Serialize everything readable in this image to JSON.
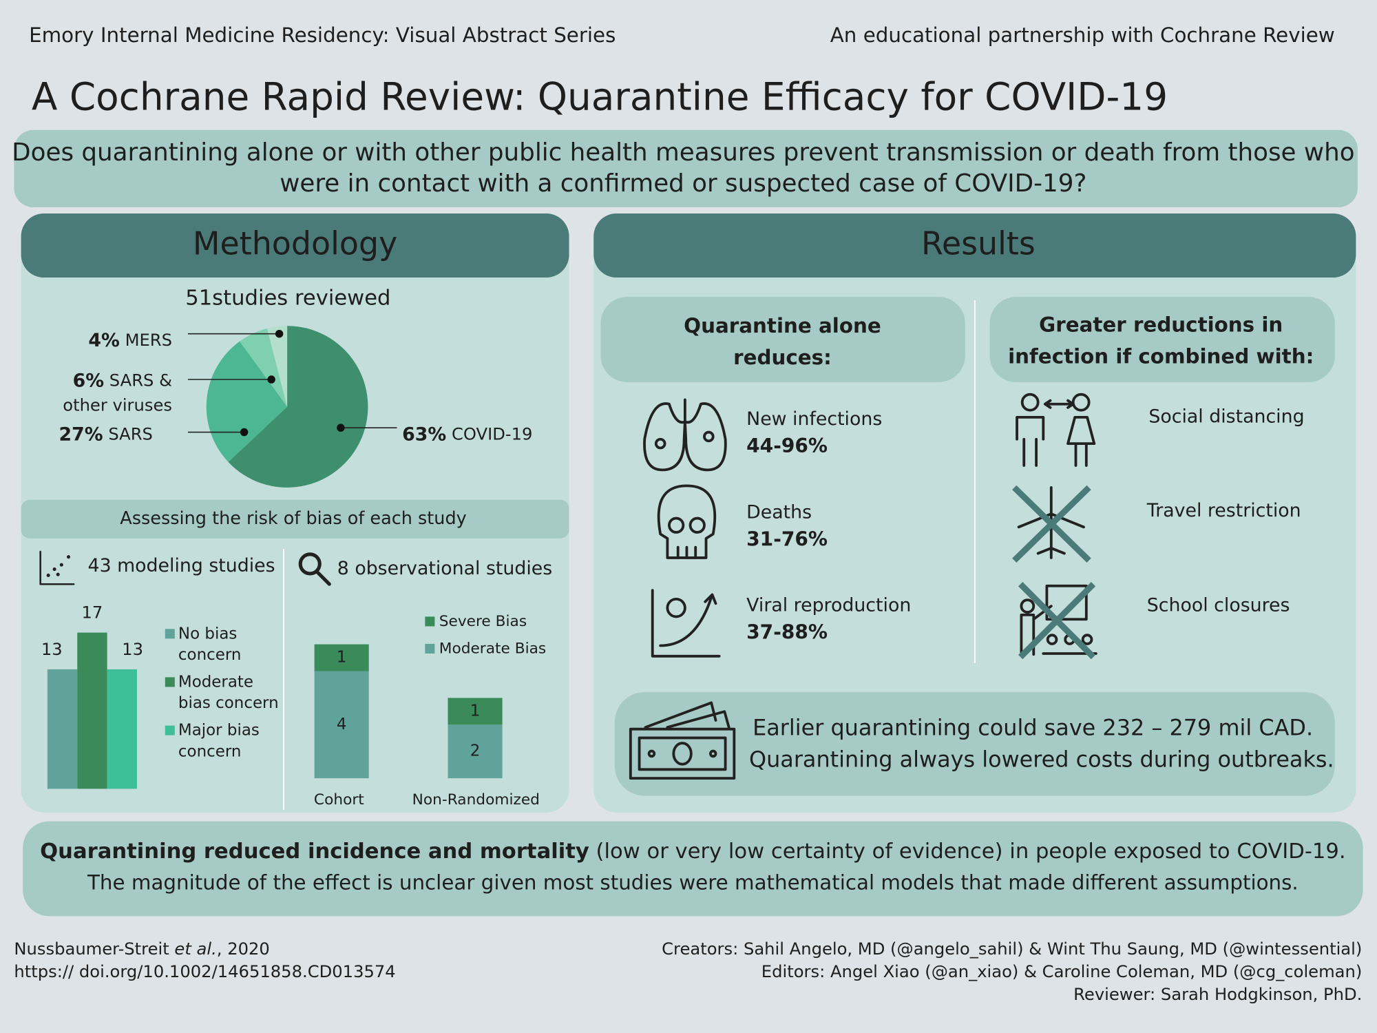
{
  "header": {
    "left": "Emory Internal Medicine Residency: Visual Abstract Series",
    "right": "An educational partnership with Cochrane Review"
  },
  "title": "A Cochrane Rapid Review: Quarantine Efficacy for COVID-19",
  "question": {
    "lines": [
      "Does quarantining alone or with other public health measures prevent transmission or death from those who",
      "were in contact with a confirmed or suspected case of COVID-19?"
    ]
  },
  "methodology": {
    "heading": "Methodology",
    "studies_count": 51,
    "studies_label": "studies reviewed",
    "pie": {
      "slices": [
        {
          "name_lines": [
            "COVID-19"
          ],
          "value": 63,
          "value_label": "63%",
          "color": "#3d8f6d"
        },
        {
          "name_lines": [
            "SARS"
          ],
          "value": 27,
          "value_label": "27%",
          "color": "#4cb792"
        },
        {
          "name_lines": [
            "SARS &",
            "other viruses"
          ],
          "value": 6,
          "value_label": "6%",
          "color": "#7fcfb1"
        },
        {
          "name_lines": [
            "MERS"
          ],
          "value": 4,
          "value_label": "4%",
          "color": "#b4dfcd"
        }
      ]
    },
    "bias_heading": "Assessing the risk of bias of each study",
    "modeling": {
      "label": "43 modeling studies",
      "series": [
        {
          "name_lines": [
            "No bias",
            "concern"
          ],
          "value": 13,
          "color": "#5fa39b"
        },
        {
          "name_lines": [
            "Moderate",
            "bias concern"
          ],
          "value": 17,
          "color": "#3a8a5a"
        },
        {
          "name_lines": [
            "Major bias",
            "concern"
          ],
          "value": 13,
          "color": "#3fbf98"
        }
      ]
    },
    "observational": {
      "label": "8 observational studies",
      "categories": [
        "Cohort",
        "Non-Randomized"
      ],
      "series": [
        {
          "name": "Moderate Bias",
          "values": [
            4,
            2
          ],
          "color": "#5fa39b"
        },
        {
          "name": "Severe Bias",
          "values": [
            1,
            1
          ],
          "color": "#3a8a5a"
        }
      ]
    }
  },
  "results": {
    "heading": "Results",
    "alone_heading": [
      "Quarantine alone",
      "reduces:"
    ],
    "items": [
      {
        "label": "New infections",
        "range": "44-96%"
      },
      {
        "label": "Deaths",
        "range": "31-76%"
      },
      {
        "label": "Viral reproduction",
        "range": "37-88%"
      }
    ],
    "combined_heading": [
      "Greater reductions in",
      "infection if combined with:"
    ],
    "measures": [
      "Social distancing",
      "Travel restriction",
      "School closures"
    ],
    "cost_lines": [
      "Earlier quarantining could save 232 – 279 mil CAD.",
      "Quarantining always lowered costs during outbreaks."
    ]
  },
  "conclusion": {
    "bold": "Quarantining reduced incidence and mortality",
    "rest": " (low or very low certainty of evidence) in people exposed to COVID-19.",
    "line2": "The magnitude of the effect is unclear given most studies were mathematical models that made different assumptions."
  },
  "footer": {
    "citation_author": "Nussbaumer-Streit ",
    "citation_etal": "et al.",
    "citation_year": ", 2020",
    "doi": "https:// doi.org/10.1002/14651858.CD013574",
    "credits": [
      "Creators: Sahil Angelo, MD (@angelo_sahil) & Wint Thu Saung, MD (@wintessential)",
      "Editors: Angel Xiao (@an_xiao) & Caroline Coleman, MD (@cg_coleman)",
      "Reviewer: Sarah Hodgkinson, PhD."
    ]
  }
}
